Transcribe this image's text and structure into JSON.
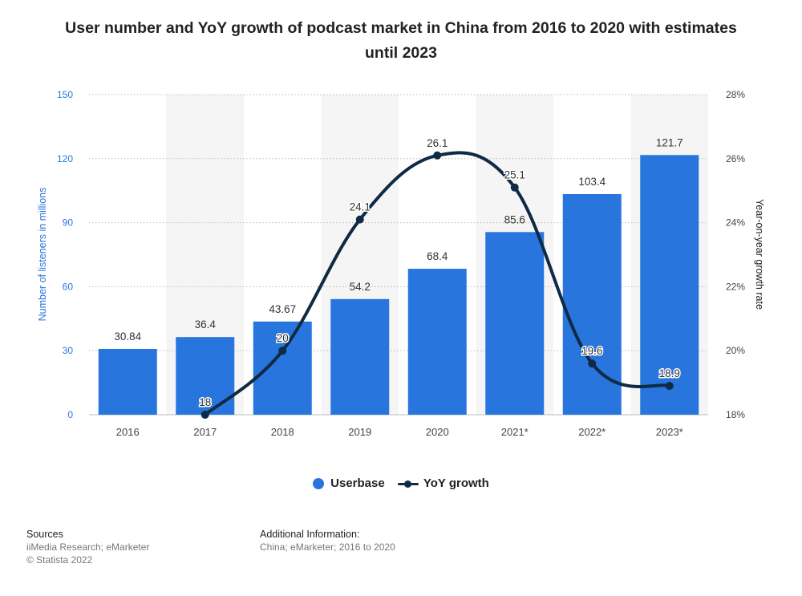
{
  "title": "User number and YoY growth of podcast market in China from 2016 to 2020 with estimates until 2023",
  "colors": {
    "bar": "#2876dd",
    "line": "#0f2a44",
    "left_axis_text": "#2876dd",
    "band": "#f5f5f5"
  },
  "chart_data": {
    "type": "bar",
    "categories": [
      "2016",
      "2017",
      "2018",
      "2019",
      "2020",
      "2021*",
      "2022*",
      "2023*"
    ],
    "series": [
      {
        "name": "Userbase",
        "type": "bar",
        "axis": "left",
        "values": [
          30.84,
          36.4,
          43.67,
          54.2,
          68.4,
          85.6,
          103.4,
          121.7
        ]
      },
      {
        "name": "YoY growth",
        "type": "line",
        "axis": "right",
        "values": [
          null,
          18,
          20,
          24.1,
          26.1,
          25.1,
          19.6,
          18.9
        ]
      }
    ],
    "bar_labels": [
      "30.84",
      "36.4",
      "43.67",
      "54.2",
      "68.4",
      "85.6",
      "103.4",
      "121.7"
    ],
    "line_labels": [
      "",
      "18",
      "20",
      "24.1",
      "26.1",
      "25.1",
      "19.6",
      "18.9"
    ],
    "y_left": {
      "label": "Number of listeners in millions",
      "ticks": [
        "0",
        "30",
        "60",
        "90",
        "120",
        "150"
      ],
      "min": 0,
      "max": 150
    },
    "y_right": {
      "label": "Year-on-year growth rate",
      "ticks": [
        "18%",
        "20%",
        "22%",
        "24%",
        "26%",
        "28%"
      ],
      "min": 18,
      "max": 28
    },
    "grid": true,
    "legend": {
      "position": "bottom",
      "items": [
        "Userbase",
        "YoY growth"
      ]
    }
  },
  "footer": {
    "sources_heading": "Sources",
    "sources_text": "iiMedia Research; eMarketer",
    "copyright": "© Statista 2022",
    "additional_heading": "Additional Information:",
    "additional_text": "China; eMarketer; 2016 to 2020"
  }
}
